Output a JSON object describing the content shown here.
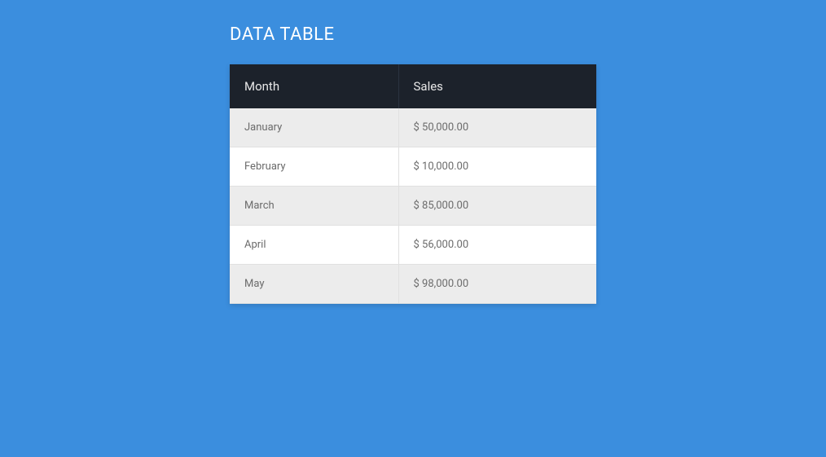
{
  "title": "DATA TABLE",
  "table": {
    "type": "table",
    "background_color": "#3b8ede",
    "header_bg": "#1c222b",
    "header_text_color": "#e8e8e8",
    "row_odd_bg": "#ececec",
    "row_even_bg": "#ffffff",
    "cell_text_color": "#6b6b6b",
    "border_color": "#e0e0e0",
    "columns": [
      "Month",
      "Sales"
    ],
    "rows": [
      [
        "January",
        "$ 50,000.00"
      ],
      [
        "February",
        "$ 10,000.00"
      ],
      [
        "March",
        "$ 85,000.00"
      ],
      [
        "April",
        "$ 56,000.00"
      ],
      [
        "May",
        "$ 98,000.00"
      ]
    ]
  }
}
